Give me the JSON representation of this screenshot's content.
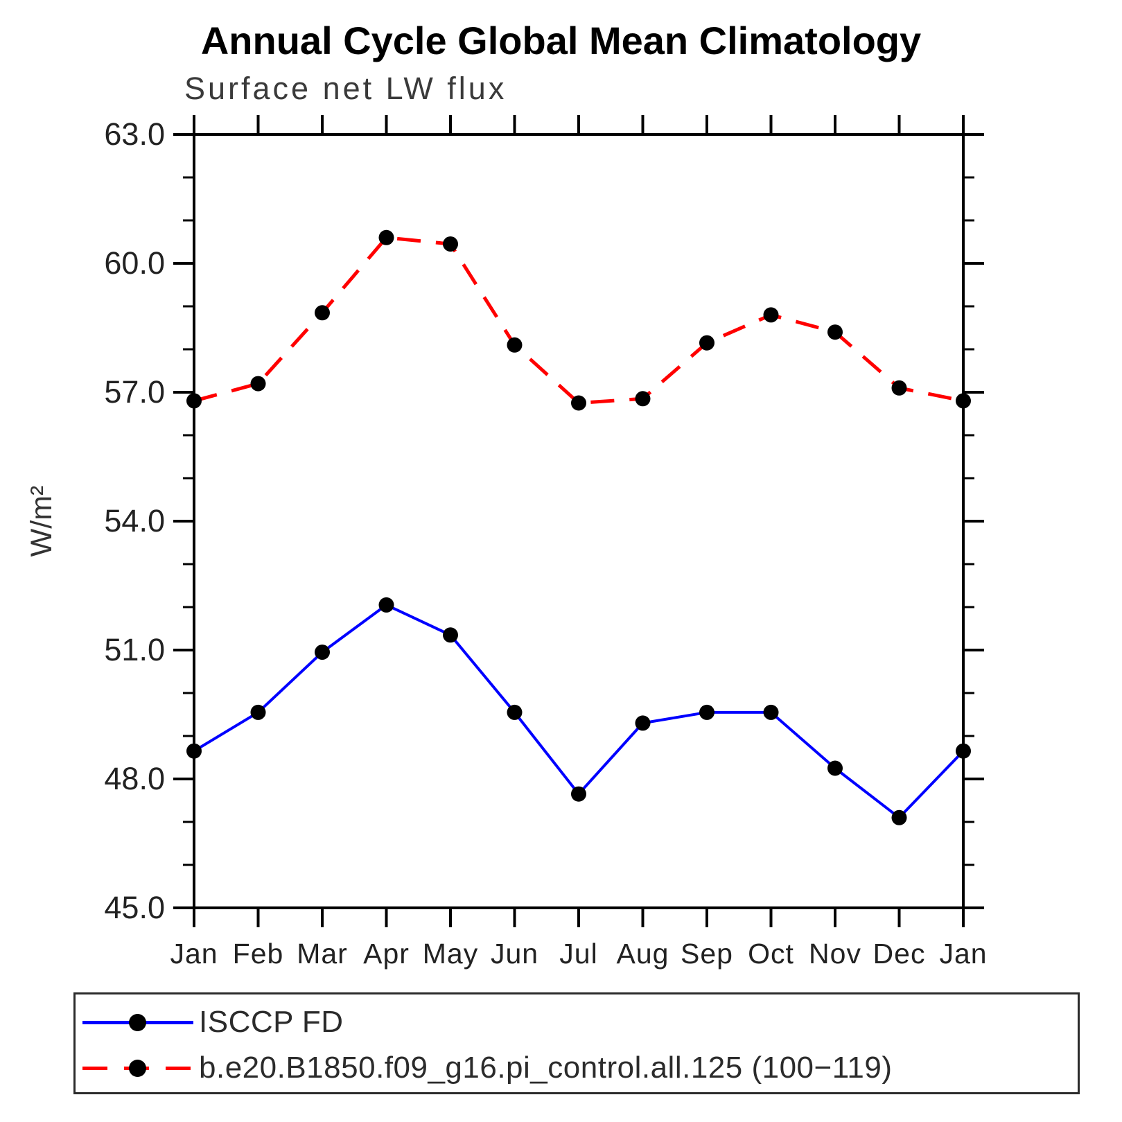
{
  "page": {
    "background_color": "#ffffff"
  },
  "chart_data": {
    "type": "line",
    "title": "Annual Cycle Global Mean Climatology",
    "subtitle": "Surface net LW flux",
    "ylabel": "W/m²",
    "xlabel": "",
    "categories": [
      "Jan",
      "Feb",
      "Mar",
      "Apr",
      "May",
      "Jun",
      "Jul",
      "Aug",
      "Sep",
      "Oct",
      "Nov",
      "Dec",
      "Jan"
    ],
    "ylim": [
      45.0,
      63.0
    ],
    "ytick_values": [
      45,
      48,
      51,
      54,
      57,
      60,
      63
    ],
    "ytick_labels": [
      "45.0",
      "48.0",
      "51.0",
      "54.0",
      "57.0",
      "60.0",
      "63.0"
    ],
    "minor_tick_step": 1.0,
    "grid": false,
    "legend_position": "bottom-box",
    "marker": "filled-circle",
    "marker_color": "#000000",
    "axis_color": "#000000",
    "series": [
      {
        "name": "ISCCP FD",
        "color": "#0000ff",
        "line_style": "solid",
        "values": [
          48.65,
          49.55,
          50.95,
          52.05,
          51.35,
          49.55,
          47.65,
          49.3,
          49.55,
          49.55,
          48.25,
          47.1,
          48.65
        ]
      },
      {
        "name": "b.e20.B1850.f09_g16.pi_control.all.125 (100−119)",
        "color": "#ff0000",
        "line_style": "dashed",
        "values": [
          56.8,
          57.2,
          58.85,
          60.6,
          60.45,
          58.1,
          56.75,
          56.85,
          58.15,
          58.8,
          58.4,
          57.1,
          56.8
        ]
      }
    ]
  }
}
